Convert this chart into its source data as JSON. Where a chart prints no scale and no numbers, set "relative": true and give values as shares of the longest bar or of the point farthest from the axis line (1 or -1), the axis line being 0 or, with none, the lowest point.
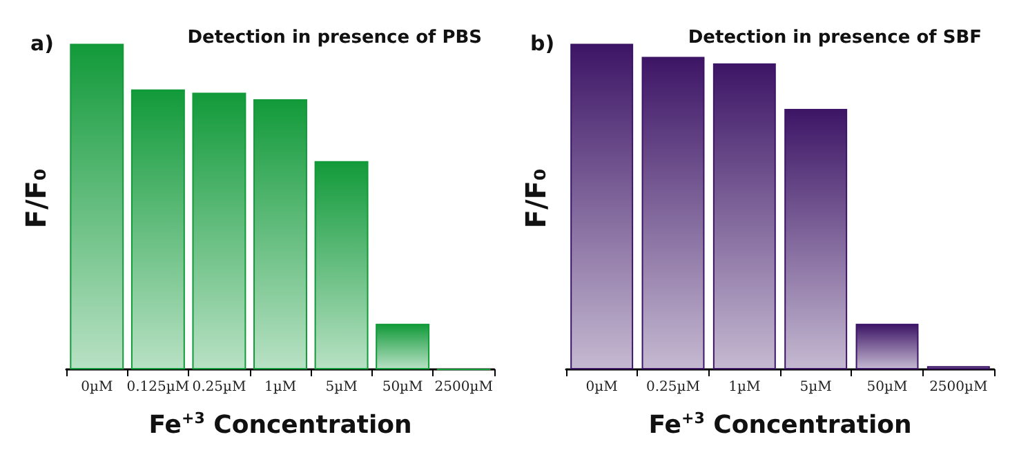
{
  "chart_data": [
    {
      "type": "bar",
      "title": "Detection in presence of PBS",
      "xlabel": "Fe$^{+3}$ Concentration",
      "ylabel": "F/F₀",
      "annotations": [
        "a)"
      ],
      "relative": true,
      "grid": false,
      "categories": [
        "0µM",
        "0.125µM",
        "0.25µM",
        "1µM",
        "5µM",
        "50µM",
        "2500µM"
      ],
      "series": [
        {
          "color": "#129a3a",
          "values": [
            1,
            0.86,
            0.85,
            0.83,
            0.64,
            0.14,
            0
          ]
        }
      ]
    },
    {
      "type": "bar",
      "title": "Detection in presence of SBF",
      "xlabel": "Fe$^{+3}$ Concentration",
      "ylabel": "F/F₀",
      "annotations": [
        "b)"
      ],
      "relative": true,
      "grid": false,
      "categories": [
        "0µM",
        "0.25µM",
        "1µM",
        "5µM",
        "50µM",
        "2500µM"
      ],
      "series": [
        {
          "color": "#3d1566",
          "values": [
            1,
            0.96,
            0.94,
            0.8,
            0.14,
            0.01
          ]
        }
      ]
    }
  ]
}
